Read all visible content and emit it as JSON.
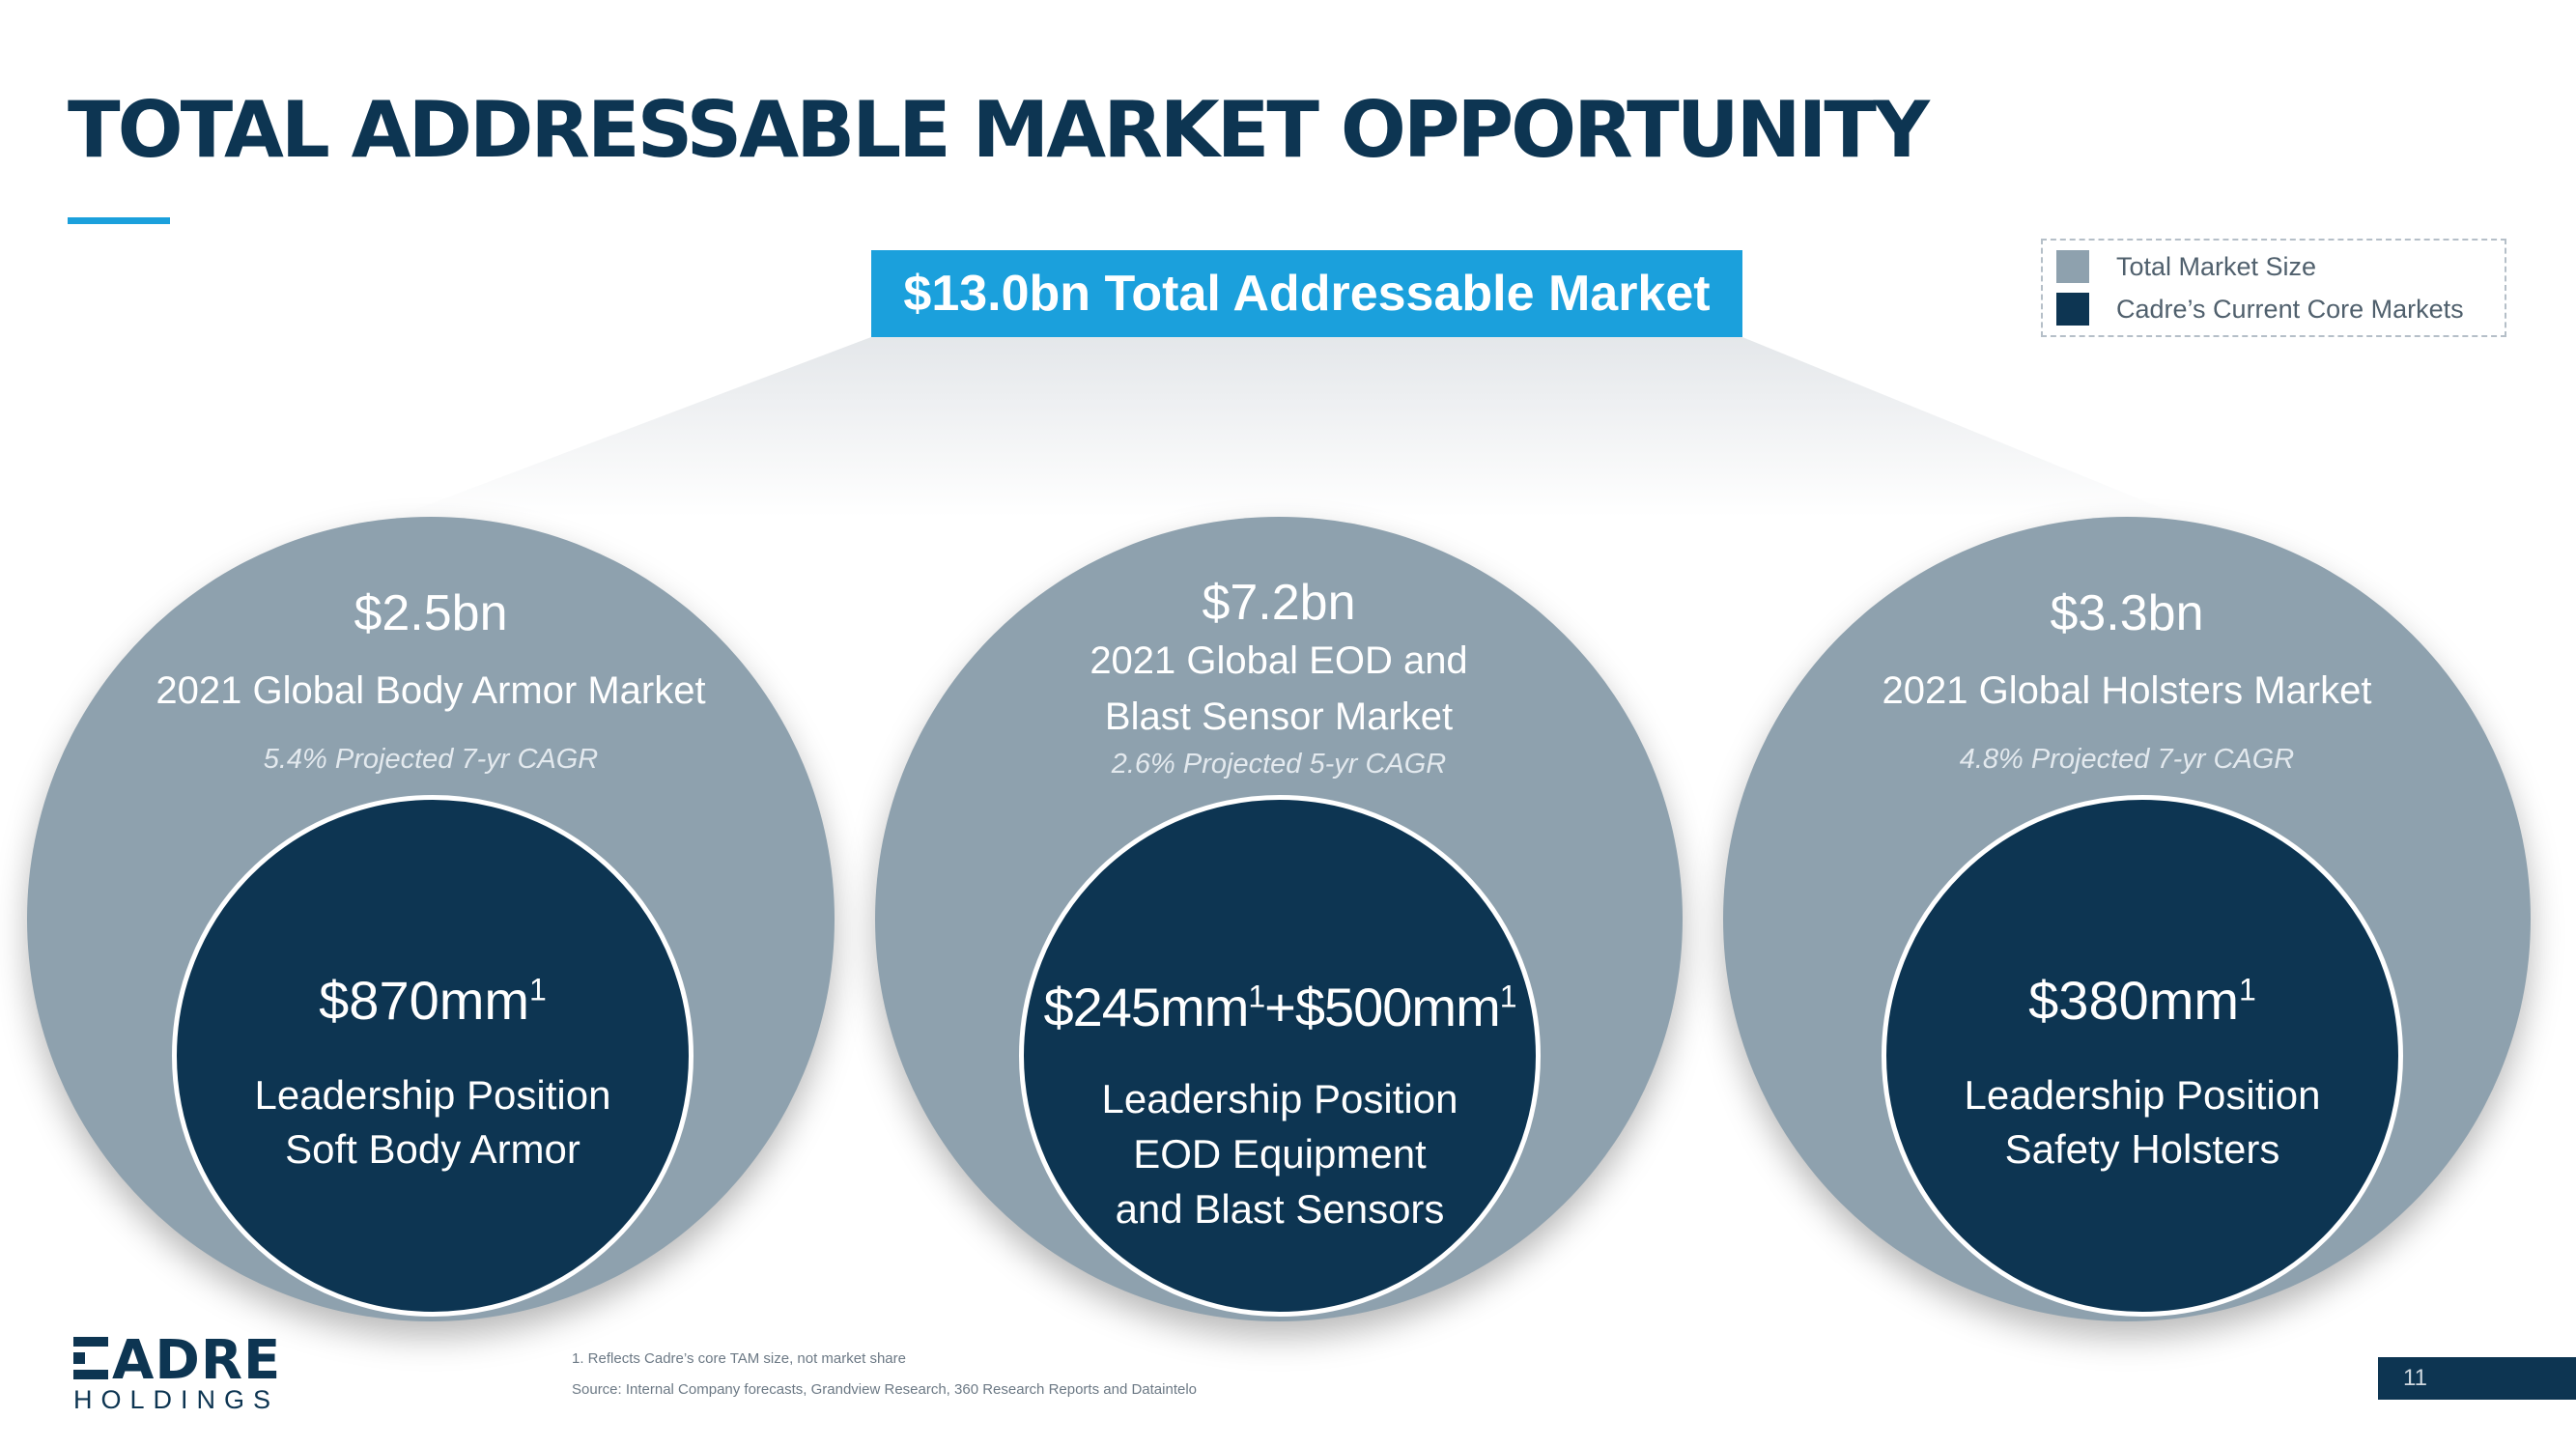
{
  "title": "TOTAL ADDRESSABLE MARKET OPPORTUNITY",
  "tam_banner": "$13.0bn Total Addressable Market",
  "legend": {
    "items": [
      {
        "label": "Total Market Size",
        "color": "#8ea1ae"
      },
      {
        "label": "Cadre’s Current Core Markets",
        "color": "#0d3552"
      }
    ]
  },
  "markets": [
    {
      "value": "$2.5bn",
      "name": "2021 Global Body Armor Market",
      "cagr": "5.4% Projected 7-yr CAGR",
      "core": "$870mm",
      "core_footnote": "1",
      "position": "Leadership Position",
      "segment": "Soft Body Armor"
    },
    {
      "value": "$7.2bn",
      "name_line1": "2021 Global EOD and",
      "name_line2": "Blast Sensor Market",
      "cagr": "2.6% Projected 5-yr CAGR",
      "core_a": "$245mm",
      "core_a_footnote": "1",
      "core_plus": "+",
      "core_b": "$500mm",
      "core_b_footnote": "1",
      "position": "Leadership Position",
      "segment_line1": "EOD Equipment",
      "segment_line2": "and Blast Sensors"
    },
    {
      "value": "$3.3bn",
      "name": "2021 Global Holsters Market",
      "cagr": "4.8% Projected 7-yr CAGR",
      "core": "$380mm",
      "core_footnote": "1",
      "position": "Leadership Position",
      "segment": "Safety Holsters"
    }
  ],
  "footnote": "1. Reflects Cadre’s core TAM size, not market share",
  "source": "Source: Internal Company forecasts, Grandview Research, 360 Research Reports and Dataintelo",
  "logo": {
    "word": "ADRE",
    "sub": "HOLDINGS"
  },
  "page_number": "11",
  "colors": {
    "accent": "#1ba0dc",
    "navy": "#0d3552",
    "slate": "#8ea1ae"
  }
}
